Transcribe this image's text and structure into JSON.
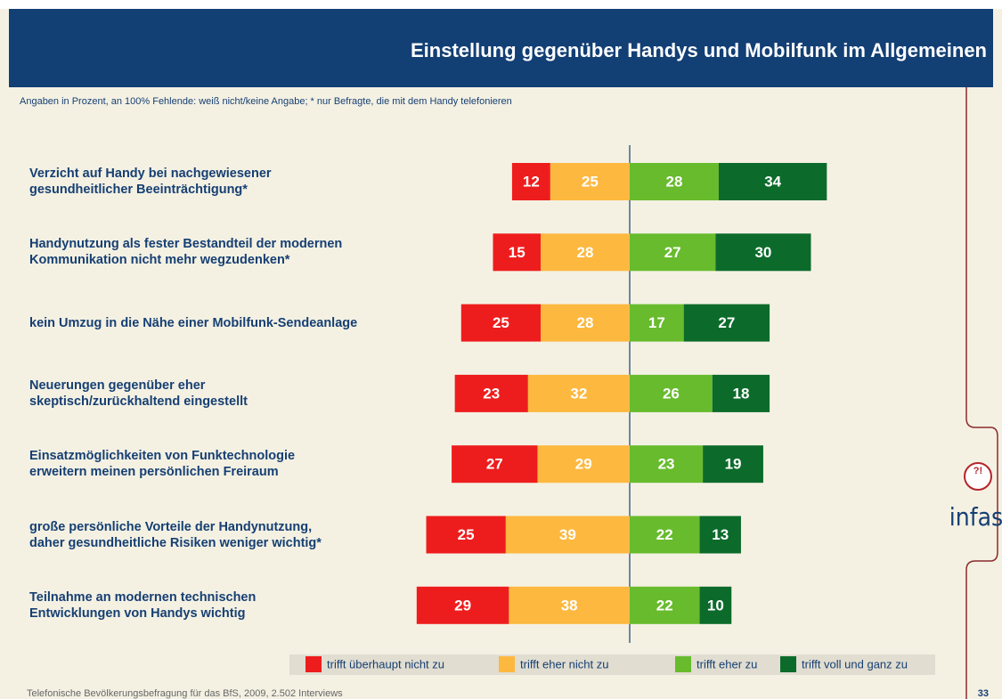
{
  "chart_data": {
    "type": "bar",
    "title": "Einstellung gegenüber Handys und Mobilfunk im Allgemeinen",
    "subtitle": "Angaben in Prozent, an 100% Fehlende: weiß nicht/keine Angabe; * nur Befragte, die mit dem Handy telefonieren",
    "orientation": "horizontal",
    "stacking": "diverging",
    "categories": [
      "Verzicht auf Handy bei nachgewiesener\ngesundheitlicher Beeinträchtigung*",
      "Handynutzung als fester Bestandteil der modernen\nKommunikation nicht mehr wegzudenken*",
      "kein Umzug in die Nähe einer Mobilfunk-Sendeanlage",
      "Neuerungen gegenüber eher\nskeptisch/zurückhaltend eingestellt",
      "Einsatzmöglichkeiten von Funktechnologie\nerweitern meinen persönlichen Freiraum",
      "große persönliche Vorteile der Handynutzung,\ndaher gesundheitliche Risiken weniger wichtig*",
      "Teilnahme an modernen technischen\nEntwicklungen von Handys wichtig"
    ],
    "series": [
      {
        "name": "trifft überhaupt nicht zu",
        "color": "#ee1d1d",
        "side": "left",
        "values": [
          12,
          15,
          25,
          23,
          27,
          25,
          29
        ]
      },
      {
        "name": "trifft eher nicht zu",
        "color": "#fdb83f",
        "side": "left",
        "values": [
          25,
          28,
          28,
          32,
          29,
          39,
          38
        ]
      },
      {
        "name": "trifft eher zu",
        "color": "#67bb2d",
        "side": "right",
        "values": [
          28,
          27,
          17,
          26,
          23,
          22,
          22
        ]
      },
      {
        "name": "trifft voll und ganz zu",
        "color": "#0c6b2b",
        "side": "right",
        "values": [
          34,
          30,
          27,
          18,
          19,
          13,
          10
        ]
      }
    ]
  },
  "footer": "Telefonische Bevölkerungsbefragung für das BfS, 2009, 2.502 Interviews",
  "page_number": "33",
  "logo": "infas"
}
